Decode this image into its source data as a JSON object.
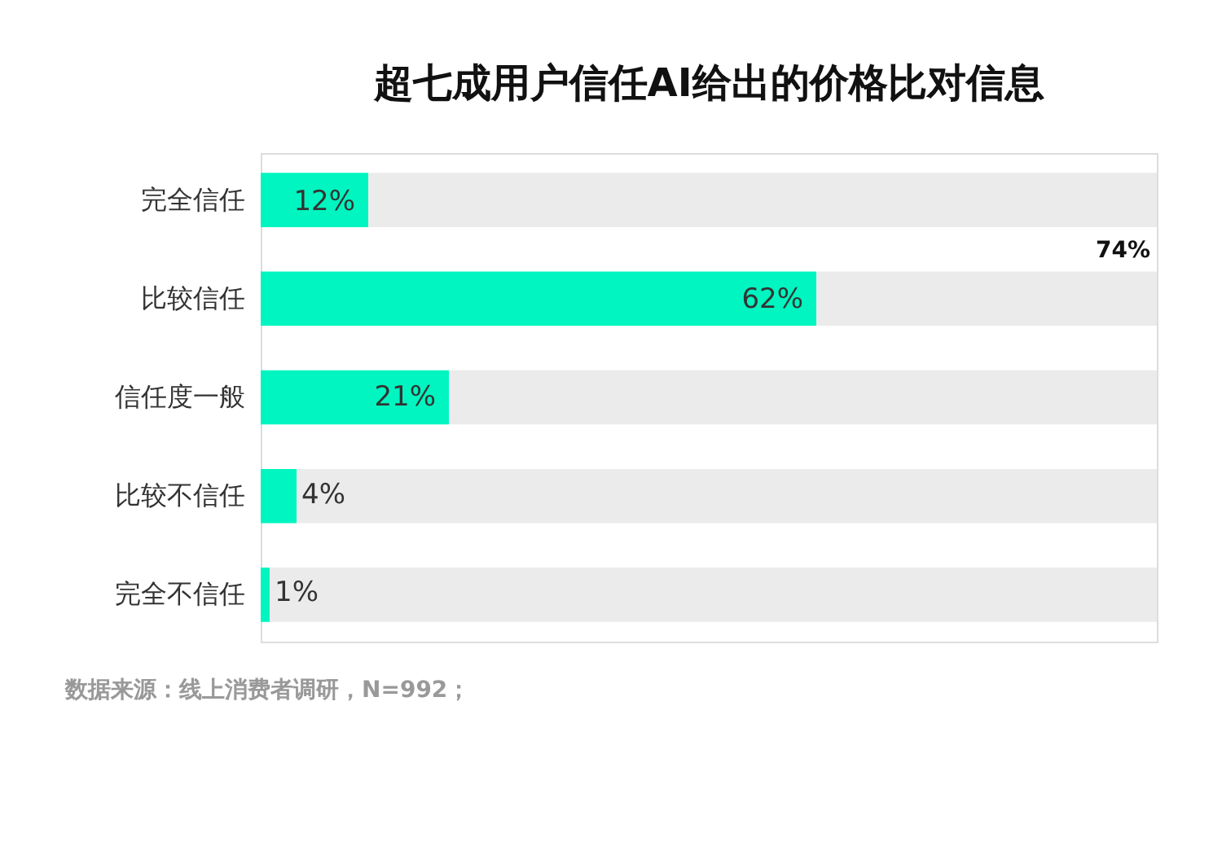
{
  "chart_data": {
    "type": "bar",
    "orientation": "horizontal",
    "stacked": true,
    "title": "超七成用户信任AI给出的价格比对信息",
    "categories": [
      "完全信任",
      "比较信任",
      "信任度一般",
      "比较不信任",
      "完全不信任"
    ],
    "series": [
      {
        "color": "#00f5c0",
        "values": [
          12,
          62,
          21,
          4,
          1
        ],
        "value_labels": [
          "12%",
          "62%",
          "21%",
          "4%",
          "1%"
        ]
      },
      {
        "color": "#ebebeb",
        "values": [
          88,
          38,
          79,
          96,
          99
        ]
      }
    ],
    "xlim": [
      0,
      100
    ],
    "tick_labels": "y",
    "annotations": [
      "74%",
      "数据来源：线上消费者调研，N=992；"
    ]
  }
}
